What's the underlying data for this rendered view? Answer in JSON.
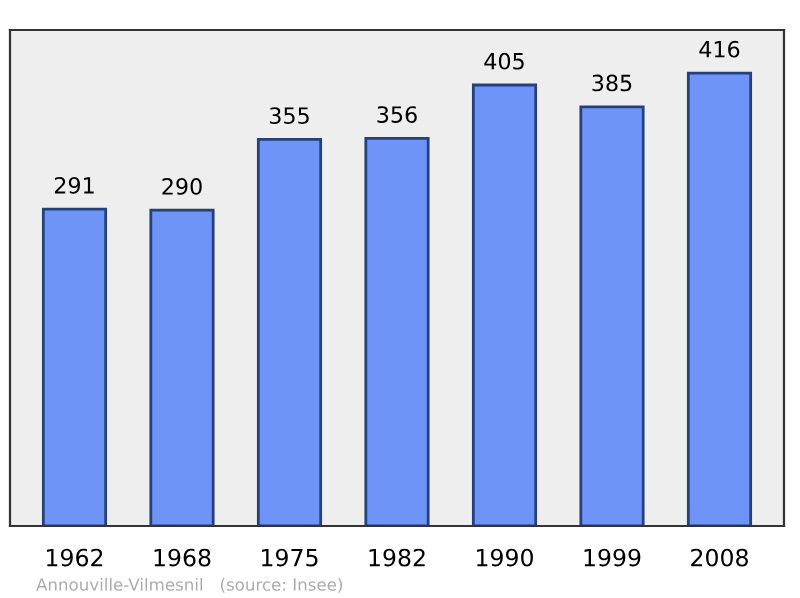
{
  "chart_data": {
    "type": "bar",
    "categories": [
      "1962",
      "1968",
      "1975",
      "1982",
      "1990",
      "1999",
      "2008"
    ],
    "values": [
      291,
      290,
      355,
      356,
      405,
      385,
      416
    ],
    "color": "#6f94f7",
    "data_labels": true,
    "grid": false,
    "annotations": [
      "Annouville-Vilmesnil   (source: Insee)"
    ]
  }
}
